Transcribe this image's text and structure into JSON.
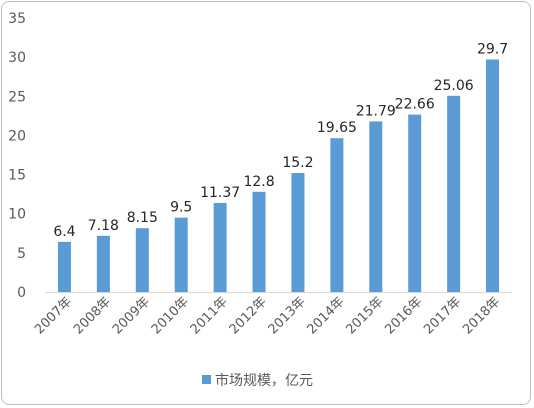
{
  "chart_data": {
    "type": "bar",
    "categories": [
      "2007年",
      "2008年",
      "2009年",
      "2010年",
      "2011年",
      "2012年",
      "2013年",
      "2014年",
      "2015年",
      "2016年",
      "2017年",
      "2018年"
    ],
    "series": [
      {
        "name": "市场规模，亿元",
        "values": [
          6.4,
          7.18,
          8.15,
          9.5,
          11.37,
          12.8,
          15.2,
          19.65,
          21.79,
          22.66,
          25.06,
          29.7
        ]
      }
    ],
    "data_labels": [
      "6.4",
      "7.18",
      "8.15",
      "9.5",
      "11.37",
      "12.8",
      "15.2",
      "19.65",
      "21.79",
      "22.66",
      "25.06",
      "29.7"
    ],
    "ylim": [
      0,
      35
    ],
    "yticks": [
      0,
      5,
      10,
      15,
      20,
      25,
      30,
      35
    ],
    "grid": false,
    "legend": "bottom",
    "colors": {
      "bar": "#5b9bd5",
      "axis": "#d9d9d9"
    }
  }
}
